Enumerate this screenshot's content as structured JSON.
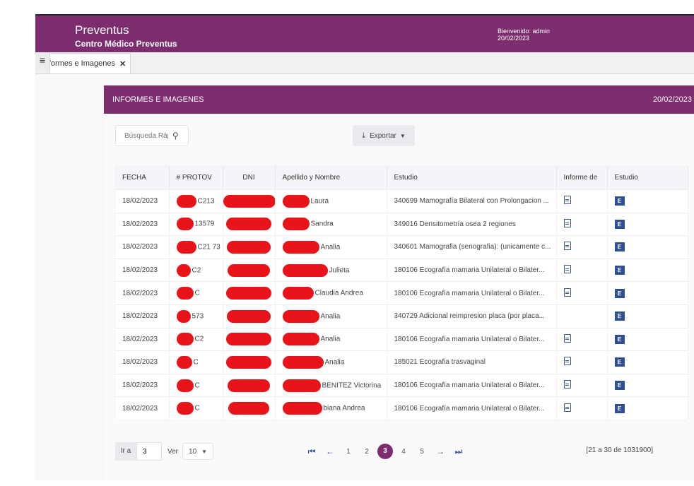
{
  "header": {
    "app_name": "Preventus",
    "center_name": "Centro Médico Preventus",
    "welcome": "Bienvenido: admin",
    "date": "20/02/2023"
  },
  "tabs": [
    {
      "label": "Informes e Imagenes",
      "close": "✕"
    }
  ],
  "menu_toggle": "≡",
  "panel": {
    "title": "INFORMES E IMAGENES",
    "date": "20/02/2023"
  },
  "search": {
    "placeholder": "Búsqueda Rápida",
    "value": ""
  },
  "export": {
    "label": "Exportar"
  },
  "table": {
    "columns": [
      "FECHA",
      "# PROTOV",
      "DNI",
      "Apellido y Nombre",
      "Estudio",
      "Informe de",
      "Estudio"
    ],
    "rows": [
      {
        "fecha": "18/02/2023",
        "protov": "C213",
        "nombre": "Laura",
        "estudio": "340699 Mamografía Bilateral con Prolongacion ...",
        "informe": true,
        "study": true
      },
      {
        "fecha": "18/02/2023",
        "protov": "13579",
        "nombre": "Sandra",
        "estudio": "349016 Densitometría osea 2 regiones",
        "informe": true,
        "study": true
      },
      {
        "fecha": "18/02/2023",
        "protov": "C21 73",
        "nombre": "Analia",
        "estudio": "340601 Mamografia (senografia): (unicamente c...",
        "informe": true,
        "study": true
      },
      {
        "fecha": "18/02/2023",
        "protov": "C2",
        "nombre": "Julieta",
        "estudio": "180106 Ecografía mamaria Unilateral o Bilater...",
        "informe": true,
        "study": true
      },
      {
        "fecha": "18/02/2023",
        "protov": "C",
        "nombre": "Claudia Andrea",
        "estudio": "180106 Ecografía mamaria Unilateral o Bilater...",
        "informe": true,
        "study": true
      },
      {
        "fecha": "18/02/2023",
        "protov": "573",
        "nombre": "Analia",
        "estudio": "340729 Adicional reimpresion placa (por placa...",
        "informe": false,
        "study": true
      },
      {
        "fecha": "18/02/2023",
        "protov": "C2",
        "nombre": "Analia",
        "estudio": "180106 Ecografía mamaria Unilateral o Bilater...",
        "informe": true,
        "study": true
      },
      {
        "fecha": "18/02/2023",
        "protov": "C",
        "nombre": "Analia",
        "estudio": "185021 Ecografia trasvaginal",
        "informe": true,
        "study": true
      },
      {
        "fecha": "18/02/2023",
        "protov": "C",
        "nombre": "BENITEZ Victorina",
        "estudio": "180106 Ecografía mamaria Unilateral o Bilater...",
        "informe": true,
        "study": true
      },
      {
        "fecha": "18/02/2023",
        "protov": "C",
        "nombre": "biana Andrea",
        "estudio": "180106 Ecografía mamaria Unilateral o Bilater...",
        "informe": true,
        "study": true
      }
    ]
  },
  "footer": {
    "goto_label": "Ir a",
    "goto_value": "3",
    "ver_label": "Ver",
    "ver_value": "10",
    "pages": [
      "1",
      "2",
      "3",
      "4",
      "5"
    ],
    "current_page": "3",
    "range": "[21 a 30 de 1031900]"
  },
  "icons": {
    "search": "search-icon",
    "export": "download-icon",
    "informe": "document-icon",
    "study": "image-viewer-icon",
    "first": "first-page-icon",
    "prev": "prev-arrow-icon",
    "next": "next-arrow-icon",
    "last": "last-page-icon"
  },
  "colors": {
    "brand": "#7b2d6e",
    "redaction": "#e8141a",
    "icon": "#2f4f8f"
  }
}
